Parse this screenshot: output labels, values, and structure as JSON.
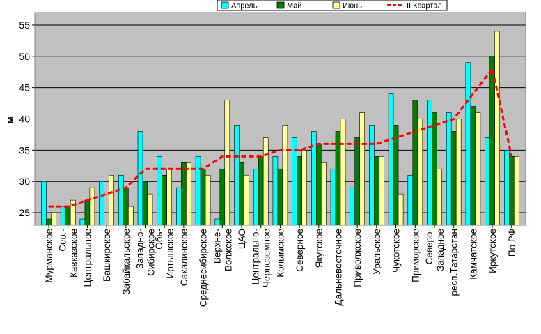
{
  "chart_data": {
    "type": "bar",
    "ylabel": "м",
    "ylim": [
      23,
      57
    ],
    "yticks": [
      25,
      30,
      35,
      40,
      45,
      50,
      55
    ],
    "grid": true,
    "legend_position": "top",
    "categories": [
      [
        "Мурманское"
      ],
      [
        "Сев.-",
        "Кавказское"
      ],
      [
        "Центральное"
      ],
      [
        "Башкирское"
      ],
      [
        "Забайкальское"
      ],
      [
        "Западно-",
        "Сибирское"
      ],
      [
        "Обь-",
        "Иртышское"
      ],
      [
        "Сахалинское"
      ],
      [
        "Среднесибирское"
      ],
      [
        "Верхне-",
        "Волжское"
      ],
      [
        "ЦАО"
      ],
      [
        "Центрально-",
        "Черноземное"
      ],
      [
        "Колымское"
      ],
      [
        "Северное"
      ],
      [
        "Якутское"
      ],
      [
        "Дальневосточное"
      ],
      [
        "Приволжское"
      ],
      [
        "Уральское"
      ],
      [
        "Чукотское"
      ],
      [
        "Приморское"
      ],
      [
        "Северо-",
        "Западное"
      ],
      [
        "респ.Татарстан"
      ],
      [
        "Камчатское"
      ],
      [
        "Иркутское"
      ],
      [
        "По РФ"
      ]
    ],
    "series": [
      {
        "name": "Апрель",
        "kind": "bar",
        "color": "#00ffff",
        "values": [
          30,
          26,
          24,
          30,
          31,
          38,
          34,
          29,
          34,
          24,
          39,
          32,
          34,
          37,
          38,
          32,
          29,
          39,
          44,
          31,
          43,
          41,
          49,
          37,
          35
        ]
      },
      {
        "name": "Май",
        "kind": "bar",
        "color": "#008000",
        "values": [
          24,
          26,
          27,
          23,
          29,
          30,
          31,
          33,
          32,
          32,
          33,
          34,
          32,
          34,
          36,
          38,
          37,
          34,
          39,
          43,
          41,
          38,
          42,
          50,
          34
        ]
      },
      {
        "name": "Июнь",
        "kind": "bar",
        "color": "#ffff99",
        "values": [
          25,
          27,
          29,
          31,
          26,
          28,
          32,
          33,
          31,
          43,
          31,
          37,
          39,
          35,
          33,
          40,
          41,
          34,
          28,
          40,
          32,
          40,
          41,
          54,
          34
        ]
      },
      {
        "name": "II Квартал",
        "kind": "line",
        "color": "#ff0000",
        "values": [
          26,
          26,
          27,
          28,
          29,
          32,
          32,
          32,
          32,
          34,
          34,
          34,
          35,
          35,
          36,
          36,
          36,
          36,
          37,
          38,
          39,
          40,
          44,
          48,
          34
        ]
      }
    ]
  }
}
